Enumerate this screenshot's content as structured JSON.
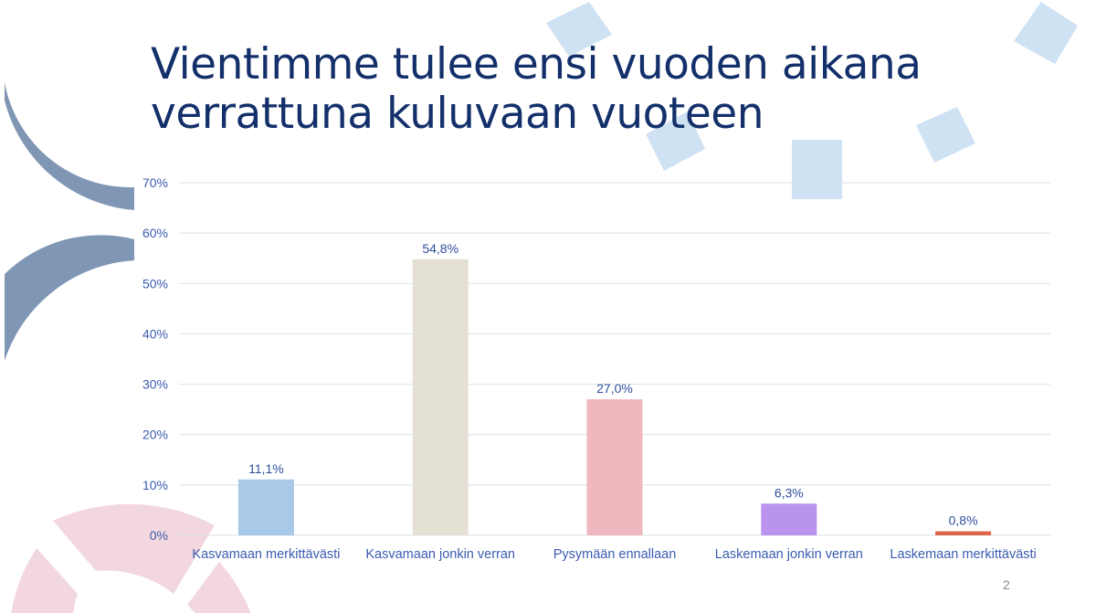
{
  "slide": {
    "title_line1": "Vientimme tulee ensi vuoden aikana",
    "title_line2": "verrattuna kuluvaan vuoteen",
    "page_number": "2"
  },
  "chart_data": {
    "type": "bar",
    "title": "Vientimme tulee ensi vuoden aikana verrattuna kuluvaan vuoteen",
    "categories": [
      "Kasvamaan merkittävästi",
      "Kasvamaan jonkin verran",
      "Pysymään ennallaan",
      "Laskemaan jonkin verran",
      "Laskemaan merkittävästi"
    ],
    "values": [
      11.1,
      54.8,
      27.0,
      6.3,
      0.8
    ],
    "data_labels": [
      "11,1%",
      "54,8%",
      "27,0%",
      "6,3%",
      "0,8%"
    ],
    "colors": [
      "#a9c9e8",
      "#e5e0d4",
      "#f0b7bf",
      "#b993ec",
      "#e0644a"
    ],
    "ylim": [
      0,
      70
    ],
    "yticks": [
      0,
      10,
      20,
      30,
      40,
      50,
      60,
      70
    ],
    "ytick_labels": [
      "0%",
      "10%",
      "20%",
      "30%",
      "40%",
      "50%",
      "60%",
      "70%"
    ],
    "xlabel": "",
    "ylabel": "",
    "grid": true,
    "legend": "none"
  }
}
